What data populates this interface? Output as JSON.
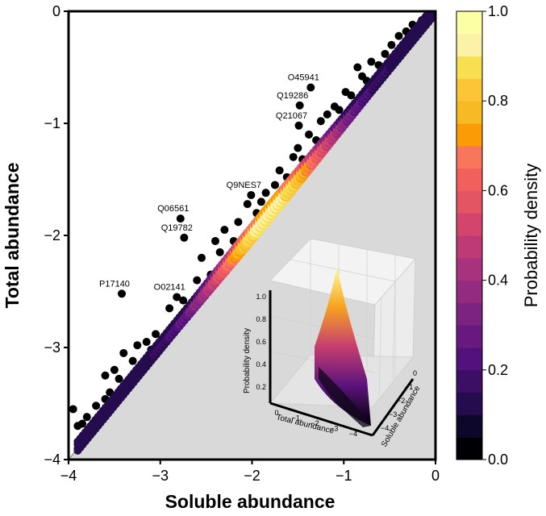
{
  "chart_data": [
    {
      "type": "scatter",
      "xlabel": "Soluble abundance",
      "ylabel": "Total abundance",
      "xlim": [
        -4,
        0
      ],
      "ylim": [
        -4,
        0
      ],
      "x_ticks": [
        "−4",
        "−3",
        "−2",
        "−1",
        "0"
      ],
      "y_ticks": [
        "−4",
        "−3",
        "−2",
        "−1",
        "0"
      ],
      "grid": false,
      "reference_line": "y = x",
      "annotations": [
        {
          "label": "O45941",
          "x": -1.36,
          "y": -0.68
        },
        {
          "label": "Q19286",
          "x": -1.48,
          "y": -0.84
        },
        {
          "label": "Q21067",
          "x": -1.49,
          "y": -1.02
        },
        {
          "label": "Q9NES7",
          "x": -2.01,
          "y": -1.64
        },
        {
          "label": "Q06561",
          "x": -2.78,
          "y": -1.85
        },
        {
          "label": "Q19782",
          "x": -2.74,
          "y": -2.02
        },
        {
          "label": "P17140",
          "x": -3.42,
          "y": -2.52
        },
        {
          "label": "O02141",
          "x": -2.82,
          "y": -2.55
        }
      ],
      "outliers": [
        [
          -3.95,
          -3.55
        ],
        [
          -3.9,
          -3.7
        ],
        [
          -3.85,
          -3.68
        ],
        [
          -3.8,
          -3.62
        ],
        [
          -3.7,
          -3.52
        ],
        [
          -3.6,
          -3.25
        ],
        [
          -3.55,
          -3.4
        ],
        [
          -3.6,
          -3.46
        ],
        [
          -3.5,
          -3.2
        ],
        [
          -3.45,
          -3.28
        ],
        [
          -3.4,
          -3.05
        ],
        [
          -3.3,
          -3.12
        ],
        [
          -3.25,
          -2.98
        ],
        [
          -3.15,
          -2.95
        ],
        [
          -3.05,
          -2.88
        ],
        [
          -2.9,
          -2.65
        ],
        [
          -2.75,
          -2.58
        ],
        [
          -2.6,
          -2.4
        ],
        [
          -2.55,
          -2.2
        ],
        [
          -2.45,
          -2.35
        ],
        [
          -2.4,
          -2.05
        ],
        [
          -2.35,
          -2.15
        ],
        [
          -2.3,
          -1.95
        ],
        [
          -2.2,
          -2.05
        ],
        [
          -2.15,
          -1.88
        ],
        [
          -2.05,
          -1.72
        ],
        [
          -1.95,
          -1.8
        ],
        [
          -1.9,
          -1.7
        ],
        [
          -1.85,
          -1.62
        ],
        [
          -1.75,
          -1.55
        ],
        [
          -1.7,
          -1.42
        ],
        [
          -1.62,
          -1.48
        ],
        [
          -1.55,
          -1.3
        ],
        [
          -1.5,
          -1.22
        ],
        [
          -1.45,
          -1.32
        ],
        [
          -1.38,
          -1.1
        ],
        [
          -1.3,
          -1.15
        ],
        [
          -1.25,
          -0.98
        ],
        [
          -1.18,
          -0.92
        ],
        [
          -1.1,
          -0.85
        ],
        [
          -1.05,
          -0.88
        ],
        [
          -0.98,
          -0.72
        ],
        [
          -0.92,
          -0.75
        ],
        [
          -0.85,
          -0.5
        ],
        [
          -0.8,
          -0.58
        ],
        [
          -0.75,
          -0.62
        ],
        [
          -0.7,
          -0.45
        ],
        [
          -0.62,
          -0.48
        ],
        [
          -0.55,
          -0.38
        ],
        [
          -0.48,
          -0.3
        ],
        [
          -0.4,
          -0.22
        ],
        [
          -0.32,
          -0.18
        ],
        [
          -0.25,
          -0.12
        ],
        [
          -0.15,
          -0.08
        ],
        [
          -0.08,
          -0.05
        ],
        [
          -0.7,
          -0.65
        ],
        [
          -0.6,
          -0.55
        ],
        [
          -1.6,
          -1.58
        ],
        [
          -2.6,
          -2.55
        ],
        [
          -3.1,
          -3.02
        ],
        [
          -3.75,
          -3.72
        ],
        [
          -1.2,
          -1.15
        ],
        [
          -0.9,
          -0.86
        ]
      ],
      "density_band": {
        "x_range": [
          -3.9,
          -0.05
        ],
        "peak_density_at_x": -1.8,
        "colormap": "inferno"
      },
      "colorbar": {
        "label": "Probability density",
        "min": 0.0,
        "max": 1.0,
        "ticks": [
          "0.0",
          "0.2",
          "0.4",
          "0.6",
          "0.8",
          "1.0"
        ],
        "colors": [
          "#000004",
          "#0d0829",
          "#240c4f",
          "#3c0f64",
          "#51127c",
          "#67197f",
          "#7c2382",
          "#932b80",
          "#a8327d",
          "#be3a77",
          "#d3456c",
          "#e45563",
          "#f1605d",
          "#f8765c",
          "#fb9b06",
          "#f7b924",
          "#fbc537",
          "#f8df51",
          "#fcf2a7",
          "#fcffa4"
        ]
      }
    },
    {
      "type": "surface3d",
      "xlabel": "Total abundance",
      "ylabel": "Soluble abundance",
      "zlabel": "Probability density",
      "x_ticks": [
        "0",
        "−1",
        "−2",
        "−3",
        "−4"
      ],
      "y_ticks": [
        "−4",
        "−3",
        "−2",
        "−1",
        "0"
      ],
      "z_ticks": [
        "0.2",
        "0.4",
        "0.6",
        "0.8",
        "1.0"
      ]
    }
  ]
}
